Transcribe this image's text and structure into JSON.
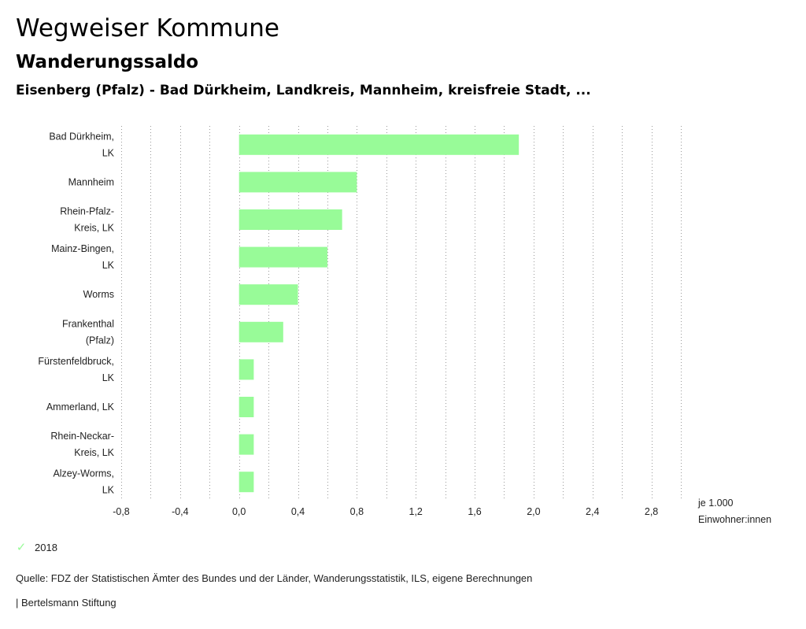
{
  "header": {
    "title": "Wegweiser Kommune",
    "subtitle": "Wanderungssaldo",
    "region": "Eisenberg (Pfalz) - Bad Dürkheim, Landkreis, Mannheim, kreisfreie Stadt, ..."
  },
  "chart_data": {
    "type": "bar",
    "orientation": "horizontal",
    "categories": [
      [
        "Bad Dürkheim,",
        "LK"
      ],
      [
        "Mannheim"
      ],
      [
        "Rhein-Pfalz-",
        "Kreis, LK"
      ],
      [
        "Mainz-Bingen,",
        "LK"
      ],
      [
        "Worms"
      ],
      [
        "Frankenthal",
        "(Pfalz)"
      ],
      [
        "Fürstenfeldbruck,",
        "LK"
      ],
      [
        "Ammerland, LK"
      ],
      [
        "Rhein-Neckar-",
        "Kreis, LK"
      ],
      [
        "Alzey-Worms,",
        "LK"
      ]
    ],
    "series": [
      {
        "name": "2018",
        "values": [
          1.9,
          0.8,
          0.7,
          0.6,
          0.4,
          0.3,
          0.1,
          0.1,
          0.1,
          0.1
        ]
      }
    ],
    "xlim": [
      -0.8,
      3.0
    ],
    "xticks": [
      -0.8,
      -0.4,
      0.0,
      0.4,
      0.8,
      1.2,
      1.6,
      2.0,
      2.4,
      2.8
    ],
    "xtick_labels": [
      "-0,8",
      "-0,4",
      "0,0",
      "0,4",
      "0,8",
      "1,2",
      "1,6",
      "2,0",
      "2,4",
      "2,8"
    ],
    "unit_label": [
      "je 1.000",
      "Einwohner:innen"
    ],
    "grid": true,
    "bar_color": "#98fb98"
  },
  "legend": {
    "label": "2018",
    "check_icon": "✓"
  },
  "footer": {
    "source": "Quelle: FDZ der Statistischen Ämter des Bundes und der Länder, Wanderungsstatistik, ILS, eigene Berechnungen",
    "credit": "| Bertelsmann Stiftung"
  }
}
